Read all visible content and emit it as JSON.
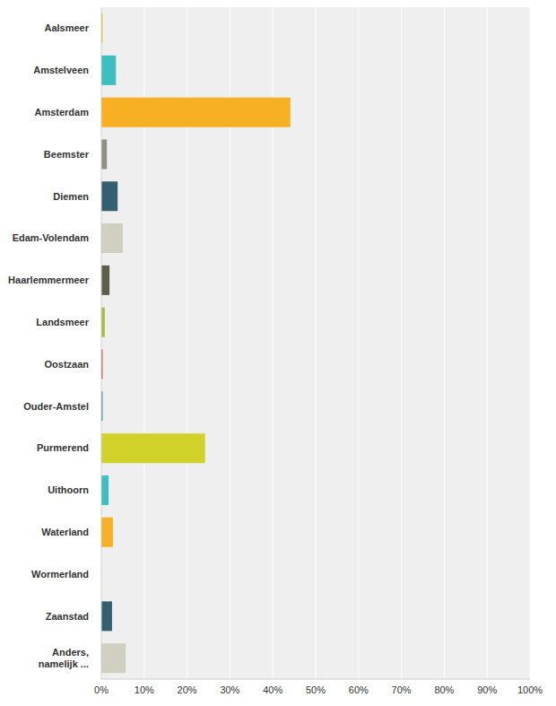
{
  "chart_data": {
    "type": "bar",
    "orientation": "horizontal",
    "categories": [
      "Aalsmeer",
      "Amstelveen",
      "Amsterdam",
      "Beemster",
      "Diemen",
      "Edam-Volendam",
      "Haarlemmermeer",
      "Landsmeer",
      "Oostzaan",
      "Ouder-Amstel",
      "Purmerend",
      "Uithoorn",
      "Waterland",
      "Wormerland",
      "Zaanstad",
      "Anders, namelijk ..."
    ],
    "values": [
      0.3,
      3.4,
      44.1,
      1.3,
      3.8,
      5.0,
      1.9,
      0.8,
      0.3,
      0.3,
      24.2,
      1.7,
      2.7,
      0,
      2.5,
      5.7
    ],
    "colors": [
      "#d0d22a",
      "#3bbfbf",
      "#f7b022",
      "#8f8f82",
      "#336170",
      "#d1d0c0",
      "#5d5e4c",
      "#a8bd3a",
      "#d04a2a",
      "#2a8f9a",
      "#d0d22a",
      "#3bbfbf",
      "#f7b022",
      "#8f8f82",
      "#336170",
      "#d1d0c0"
    ],
    "xlim": [
      0,
      100
    ],
    "xticks": [
      {
        "value": 0,
        "label": "0%"
      },
      {
        "value": 10,
        "label": "10%"
      },
      {
        "value": 20,
        "label": "20%"
      },
      {
        "value": 30,
        "label": "30%"
      },
      {
        "value": 40,
        "label": "40%"
      },
      {
        "value": 50,
        "label": "50%"
      },
      {
        "value": 60,
        "label": "60%"
      },
      {
        "value": 70,
        "label": "70%"
      },
      {
        "value": 80,
        "label": "80%"
      },
      {
        "value": 90,
        "label": "90%"
      },
      {
        "value": 100,
        "label": "100%"
      }
    ],
    "grid": true
  }
}
